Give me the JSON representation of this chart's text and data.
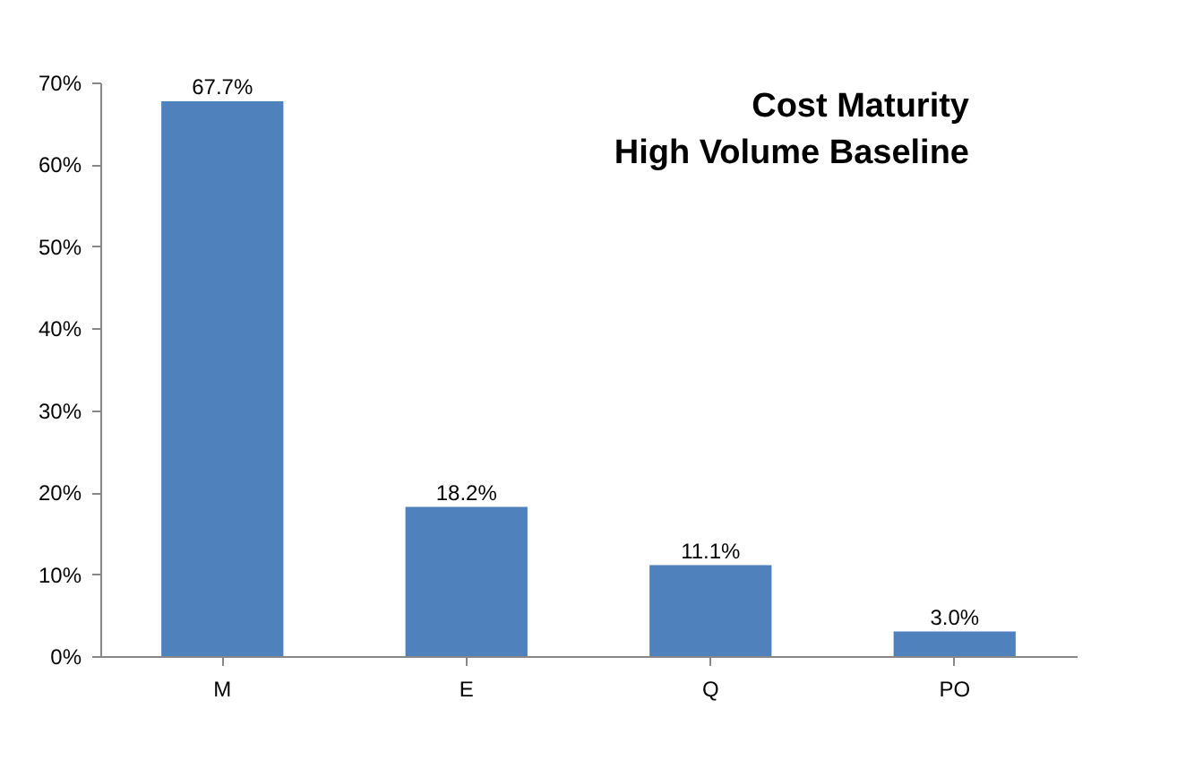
{
  "chart_data": {
    "type": "bar",
    "title": "Cost Maturity\nHigh Volume Baseline",
    "categories": [
      "M",
      "E",
      "Q",
      "PO"
    ],
    "values": [
      67.7,
      18.2,
      11.1,
      3.0
    ],
    "value_labels": [
      "67.7%",
      "18.2%",
      "11.1%",
      "3.0%"
    ],
    "color": "#4f81bd",
    "ylim": [
      0,
      70
    ],
    "yticks": [
      {
        "value": 0,
        "label": "0%"
      },
      {
        "value": 10,
        "label": "10%"
      },
      {
        "value": 20,
        "label": "20%"
      },
      {
        "value": 30,
        "label": "30%"
      },
      {
        "value": 40,
        "label": "40%"
      },
      {
        "value": 50,
        "label": "50%"
      },
      {
        "value": 60,
        "label": "60%"
      },
      {
        "value": 70,
        "label": "70%"
      }
    ],
    "grid": false
  }
}
